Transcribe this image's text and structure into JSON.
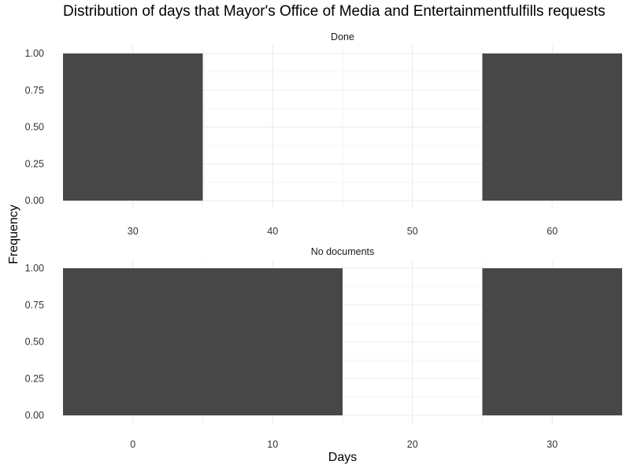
{
  "chart_data": {
    "type": "bar",
    "title": "Distribution of days that Mayor's Office of Media and Entertainmentfulfills requests",
    "xlabel": "Days",
    "ylabel": "Frequency",
    "grid": true,
    "facets": [
      {
        "name": "Done",
        "xlim": [
          25,
          65
        ],
        "x_ticks": [
          30,
          40,
          50,
          60
        ],
        "ylim": [
          0,
          1
        ],
        "y_ticks": [
          "0.00",
          "0.25",
          "0.50",
          "0.75",
          "1.00"
        ],
        "bins": [
          {
            "x_start": 25,
            "x_end": 35,
            "count": 1
          },
          {
            "x_start": 55,
            "x_end": 65,
            "count": 1
          }
        ]
      },
      {
        "name": "No documents",
        "xlim": [
          -5,
          35
        ],
        "x_ticks": [
          0,
          10,
          20,
          30
        ],
        "ylim": [
          0,
          1
        ],
        "y_ticks": [
          "0.00",
          "0.25",
          "0.50",
          "0.75",
          "1.00"
        ],
        "bins": [
          {
            "x_start": -5,
            "x_end": 15,
            "count": 1
          },
          {
            "x_start": 25,
            "x_end": 35,
            "count": 1
          }
        ]
      }
    ],
    "bar_color": "#474747",
    "grid_color": "#ebebeb"
  }
}
